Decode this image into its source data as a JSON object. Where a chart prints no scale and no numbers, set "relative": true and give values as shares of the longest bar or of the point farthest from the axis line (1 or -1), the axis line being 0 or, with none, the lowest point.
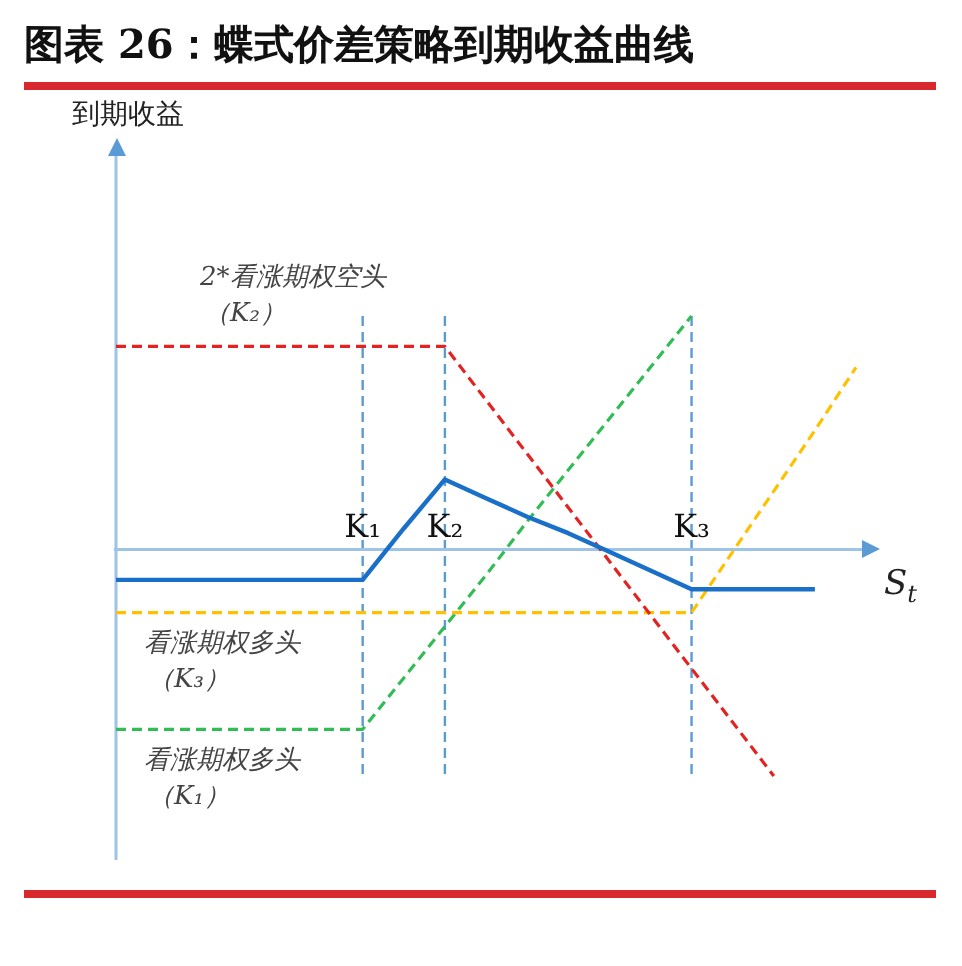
{
  "chart_data": {
    "type": "line",
    "title": "图表 26：蝶式价差策略到期收益曲线",
    "xlabel": "S$_{t}$",
    "annotations": [
      "到期收益"
    ],
    "relative": true,
    "categories": [
      null,
      null,
      null,
      null,
      null,
      null,
      "K₁",
      null,
      "K₂",
      null,
      null,
      null,
      null,
      null,
      "K₃",
      null,
      null,
      null,
      null
    ],
    "series": [
      {
        "color": "#1a70c8",
        "line_style": "solid",
        "values": [
          -0.13,
          -0.13,
          -0.13,
          -0.13,
          -0.13,
          -0.13,
          -0.13,
          0.09,
          0.3,
          0.22,
          0.14,
          0.07,
          -0.01,
          -0.09,
          -0.17,
          -0.17,
          -0.17,
          -0.17,
          null
        ]
      },
      {
        "name": "2*看涨期权空头（K₂）",
        "color": "#e32322",
        "line_style": "dashed",
        "values": [
          0.87,
          0.87,
          0.87,
          0.87,
          0.87,
          0.87,
          0.87,
          0.87,
          0.87,
          0.64,
          0.41,
          0.18,
          -0.05,
          -0.28,
          -0.51,
          -0.74,
          -0.97,
          null,
          null
        ]
      },
      {
        "name": "看涨期权多头（K₃）",
        "color": "#ffc000",
        "line_style": "dashed",
        "values": [
          -0.27,
          -0.27,
          -0.27,
          -0.27,
          -0.27,
          -0.27,
          -0.27,
          -0.27,
          -0.27,
          -0.27,
          -0.27,
          -0.27,
          -0.27,
          -0.27,
          -0.27,
          -0.01,
          0.25,
          0.51,
          0.78
        ]
      },
      {
        "name": "看涨期权多头（K₁）",
        "color": "#33bb55",
        "line_style": "dashed",
        "values": [
          -0.77,
          -0.77,
          -0.77,
          -0.77,
          -0.77,
          -0.77,
          -0.77,
          -0.55,
          -0.33,
          -0.11,
          0.12,
          0.34,
          0.56,
          0.78,
          1,
          null,
          null,
          null,
          null
        ]
      }
    ],
    "ref_lines": [
      {
        "axis": "x",
        "value": "K₁",
        "color": "#5b9bd5",
        "line_style": "dashed"
      },
      {
        "axis": "x",
        "value": "K₂",
        "color": "#5b9bd5",
        "line_style": "dashed"
      },
      {
        "axis": "x",
        "value": "K₃",
        "color": "#5b9bd5",
        "line_style": "dashed"
      }
    ]
  }
}
